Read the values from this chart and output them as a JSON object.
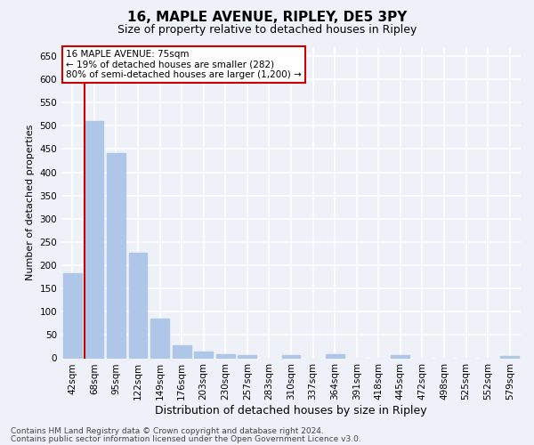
{
  "title1": "16, MAPLE AVENUE, RIPLEY, DE5 3PY",
  "title2": "Size of property relative to detached houses in Ripley",
  "xlabel": "Distribution of detached houses by size in Ripley",
  "ylabel": "Number of detached properties",
  "categories": [
    "42sqm",
    "68sqm",
    "95sqm",
    "122sqm",
    "149sqm",
    "176sqm",
    "203sqm",
    "230sqm",
    "257sqm",
    "283sqm",
    "310sqm",
    "337sqm",
    "364sqm",
    "391sqm",
    "418sqm",
    "445sqm",
    "472sqm",
    "498sqm",
    "525sqm",
    "552sqm",
    "579sqm"
  ],
  "values": [
    182,
    510,
    442,
    227,
    85,
    28,
    15,
    9,
    6,
    0,
    6,
    0,
    9,
    0,
    0,
    6,
    0,
    0,
    0,
    0,
    5
  ],
  "bar_color": "#aec6e8",
  "red_line_index": 1,
  "red_line_color": "#cc0000",
  "ylim": [
    0,
    670
  ],
  "yticks": [
    0,
    50,
    100,
    150,
    200,
    250,
    300,
    350,
    400,
    450,
    500,
    550,
    600,
    650
  ],
  "annotation_title": "16 MAPLE AVENUE: 75sqm",
  "annotation_line1": "← 19% of detached houses are smaller (282)",
  "annotation_line2": "80% of semi-detached houses are larger (1,200) →",
  "annotation_box_color": "#ffffff",
  "annotation_border_color": "#cc0000",
  "footer1": "Contains HM Land Registry data © Crown copyright and database right 2024.",
  "footer2": "Contains public sector information licensed under the Open Government Licence v3.0.",
  "bg_color": "#eef2f8",
  "grid_color": "#ffffff",
  "title1_fontsize": 11,
  "title2_fontsize": 9,
  "xlabel_fontsize": 9,
  "ylabel_fontsize": 8,
  "tick_fontsize": 7.5,
  "annotation_fontsize": 7.5,
  "footer_fontsize": 6.5
}
